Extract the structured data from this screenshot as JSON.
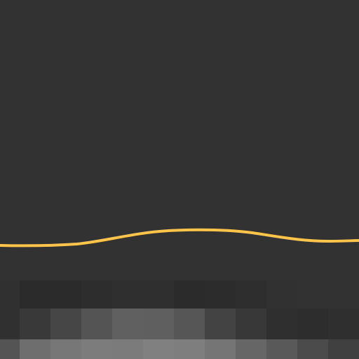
{
  "canvas": {
    "background_color": "#323232",
    "curve_color": "#FFC44A"
  },
  "pixel_rows": [
    {
      "colors": [
        "#303030",
        "#2b2b2b",
        "#2b2b2b",
        "#2d2d2d",
        "#2f2f2f",
        "#2f2f2f",
        "#2b2b2b",
        "#2c2c2c",
        "#2e2e2e",
        "#313131",
        "#323232",
        "#323232"
      ]
    },
    {
      "colors": [
        "#303030",
        "#393939",
        "#464646",
        "#545454",
        "#606060",
        "#5f5f5f",
        "#565656",
        "#434343",
        "#383838",
        "#2f2f2f",
        "#2d2d2d",
        "#2f2f2f"
      ]
    },
    {
      "colors": [
        "#545454",
        "#6e6e6e",
        "#777777",
        "#7c7c7c",
        "#7b7b7b",
        "#808080",
        "#7e7e7e",
        "#757575",
        "#666666",
        "#595959",
        "#4b4b4b",
        "#404040"
      ]
    }
  ]
}
